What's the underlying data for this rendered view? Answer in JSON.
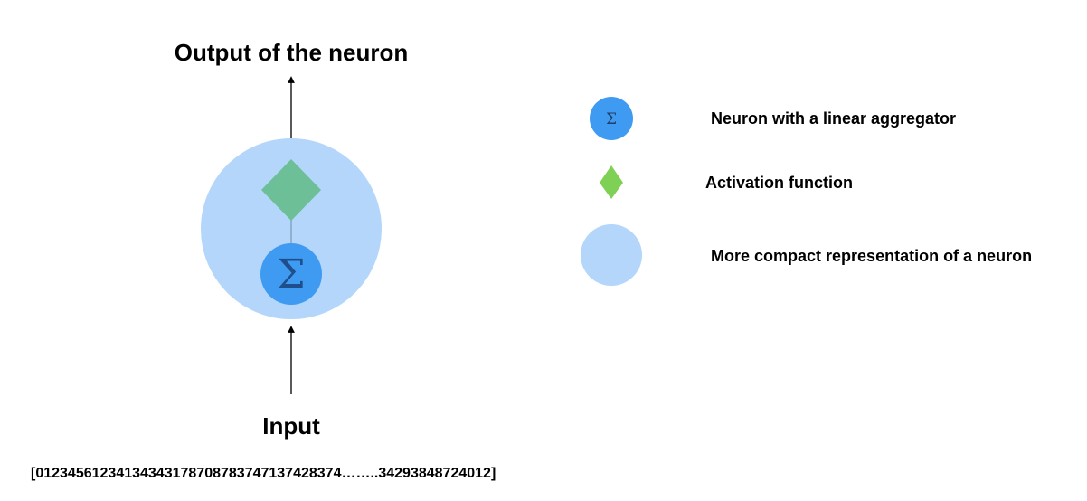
{
  "diagram": {
    "output_label": "Output of the neuron",
    "input_label": "Input",
    "input_sequence": "[01234561234134343178708783747137428374……..34293848724012]",
    "aggregator_symbol": "Σ"
  },
  "legend": {
    "items": [
      {
        "symbol": "Σ",
        "label": "Neuron with a linear aggregator"
      },
      {
        "label": "Activation function"
      },
      {
        "label": "More compact representation of a neuron"
      }
    ]
  },
  "colors": {
    "neuron_compact": "#b3d6fa",
    "aggregator": "#3f9bf2",
    "activation_in_neuron": "#6cbf96",
    "activation_legend": "#7ed154",
    "arrow": "#000000"
  }
}
